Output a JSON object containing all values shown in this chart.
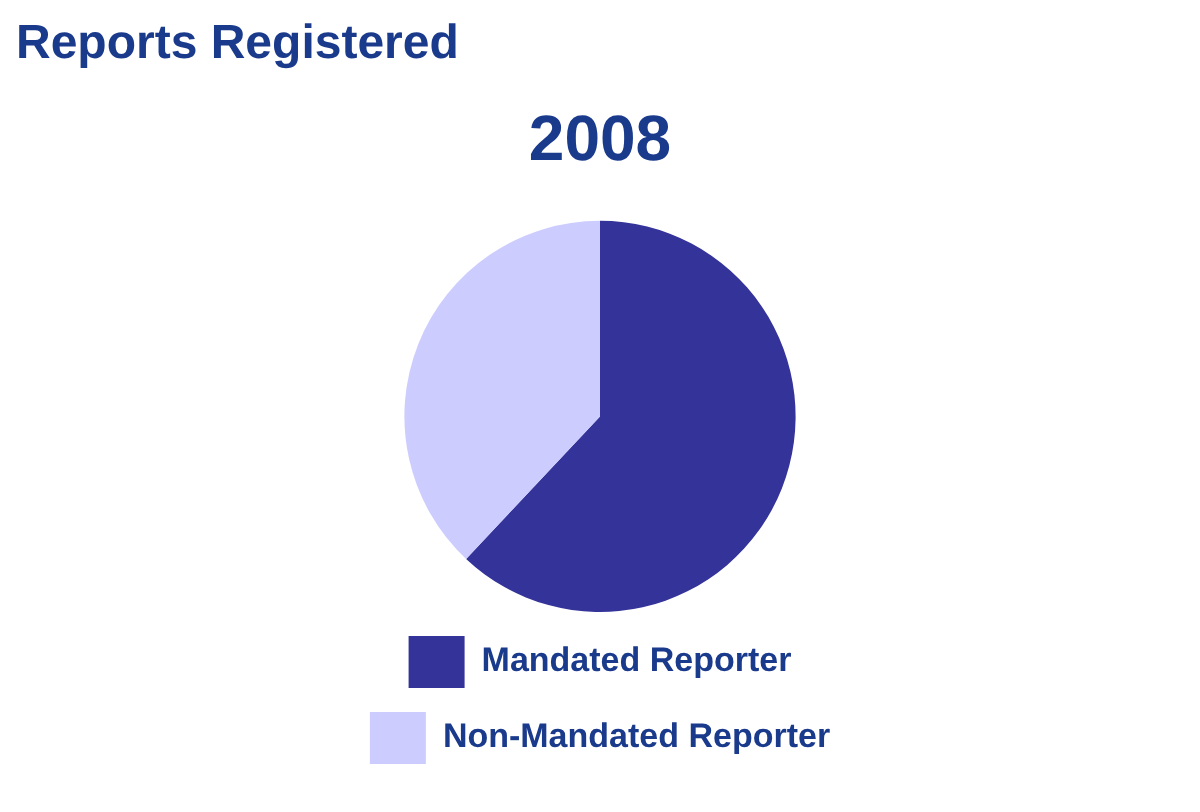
{
  "chart_data": {
    "type": "pie",
    "title": "2008",
    "subtitle": "Reports Registered",
    "categories": [
      "Mandated Reporter",
      "Non-Mandated Reporter"
    ],
    "values": [
      62,
      38
    ],
    "colors": [
      "#333399",
      "#ccccff"
    ],
    "legend": "bottom"
  }
}
